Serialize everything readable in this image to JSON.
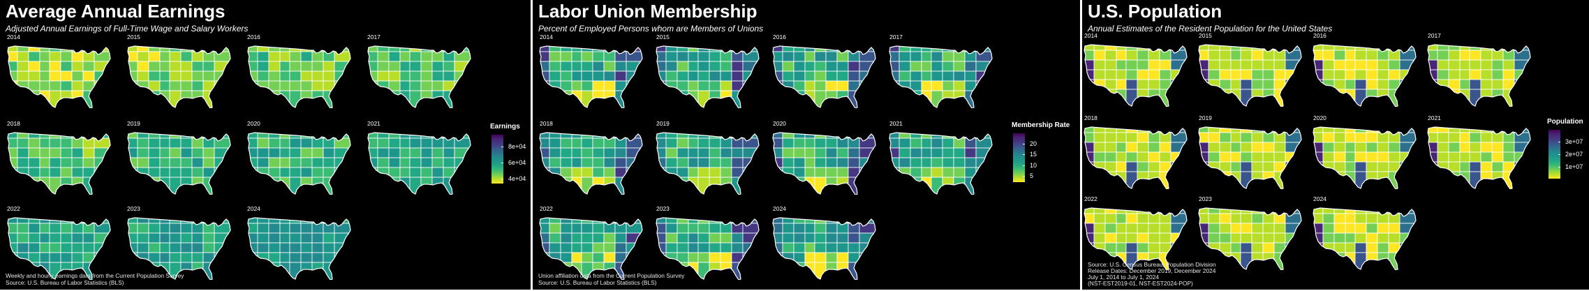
{
  "palette": [
    "#fde725",
    "#b8de29",
    "#74d055",
    "#3cbb75",
    "#22a884",
    "#1f968b",
    "#238a8d",
    "#2d708e",
    "#39558c",
    "#453781",
    "#482576",
    "#440154"
  ],
  "panels": [
    {
      "title": "Average Annual Earnings",
      "subtitle": "Adjusted Annual Earnings of Full-Time Wage and Salary Workers",
      "caption": [
        "Weekly and hourly earnings data from the Current Population Survey",
        "Source: U.S. Bureau of Labor Statistics (BLS)"
      ],
      "legend": {
        "title": "Earnings",
        "labels": [
          "8e+04",
          "6e+04",
          "4e+04"
        ],
        "label_values": [
          80000,
          60000,
          40000
        ],
        "min": 34000,
        "max": 95000
      },
      "years": [
        "2014",
        "2015",
        "2016",
        "2017",
        "2018",
        "2019",
        "2020",
        "2021",
        "2022",
        "2023",
        "2024"
      ]
    },
    {
      "title": "Labor Union Membership",
      "subtitle": "Percent of Employed Persons whom are Members of Unions",
      "caption": [
        "Union affiliation data from the Current Population Survey",
        "Source: U.S. Bureau of Labor Statistics (BLS)"
      ],
      "legend": {
        "title": "Membership Rate",
        "labels": [
          "20",
          "15",
          "10",
          "5"
        ],
        "label_values": [
          20,
          15,
          10,
          5
        ],
        "min": 2,
        "max": 25
      },
      "years": [
        "2014",
        "2015",
        "2016",
        "2017",
        "2018",
        "2019",
        "2020",
        "2021",
        "2022",
        "2023",
        "2024"
      ]
    },
    {
      "title": "U.S. Population",
      "subtitle": "Annual Estimates of the Resident Population for the United States",
      "caption": [
        "Source: U.S. Census Bureau, Population Division",
        "Release Dates: December 2019, December 2024",
        "July 1, 2014 to July 1, 2024",
        "(NST-EST2019-01, NST-EST2024-POP)"
      ],
      "legend": {
        "title": "Population",
        "labels": [
          "3e+07",
          "2e+07",
          "1e+07"
        ],
        "label_values": [
          30000000,
          20000000,
          10000000
        ],
        "min": 500000,
        "max": 39500000
      },
      "years": [
        "2014",
        "2015",
        "2016",
        "2017",
        "2018",
        "2019",
        "2020",
        "2021",
        "2022",
        "2023",
        "2024"
      ]
    }
  ]
}
